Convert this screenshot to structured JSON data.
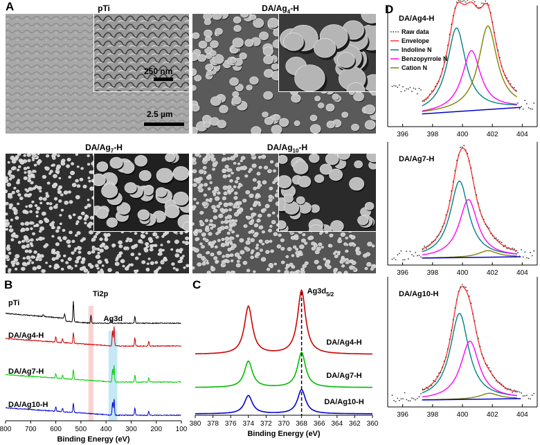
{
  "panel_a": {
    "label": "A",
    "images": [
      {
        "title": "pTi",
        "inset_scale": "250 nm",
        "main_scale": "2.5 µm"
      },
      {
        "title": "DA/Ag",
        "sub": "4",
        "suffix": "-H"
      },
      {
        "title": "DA/Ag",
        "sub": "7",
        "suffix": "-H"
      },
      {
        "title": "DA/Ag",
        "sub": "10",
        "suffix": "-H"
      }
    ]
  },
  "panel_b": {
    "label": "B",
    "chart_data": {
      "type": "line",
      "xlabel": "Binding Energy (eV)",
      "xlim": [
        800,
        100
      ],
      "x_ticks": [
        "800",
        "700",
        "600",
        "500",
        "400",
        "300",
        "200",
        "100"
      ],
      "annotations": [
        "Ti2p",
        "Ag3d"
      ],
      "series": [
        {
          "name": "pTi",
          "color": "#000000"
        },
        {
          "name": "DA/Ag4-H",
          "color": "#cc0000"
        },
        {
          "name": "DA/Ag7-H",
          "color": "#00cc00"
        },
        {
          "name": "DA/Ag10-H",
          "color": "#0000cc"
        }
      ]
    }
  },
  "panel_c": {
    "label": "C",
    "chart_data": {
      "type": "line",
      "xlabel": "Binding Energy (eV)",
      "xlim": [
        380,
        360
      ],
      "x_ticks": [
        "380",
        "378",
        "376",
        "374",
        "372",
        "370",
        "368",
        "366",
        "364",
        "362",
        "360"
      ],
      "annotation_main": "Ag3d",
      "annotation_sub": "5/2",
      "peaks": [
        374.0,
        368.0
      ],
      "series": [
        {
          "name": "DA/Ag4-H",
          "color": "#cc0000",
          "height": 1.0
        },
        {
          "name": "DA/Ag7-H",
          "color": "#00bb00",
          "height": 0.55
        },
        {
          "name": "DA/Ag10-H",
          "color": "#0000cc",
          "height": 0.38
        }
      ]
    }
  },
  "panel_d": {
    "label": "D",
    "legend": [
      "Raw data",
      "Envelope",
      "Indoline N",
      "Benzopyrrole N",
      "Cation N"
    ],
    "colors": {
      "raw": "#333333",
      "envelope": "#ff3333",
      "indoline": "#008080",
      "benzopyrrole": "#ff00ff",
      "cation": "#808000",
      "baseline": "#0000cc"
    },
    "x_ticks": [
      "396",
      "398",
      "400",
      "402",
      "404"
    ],
    "plots": [
      {
        "title": "DA/Ag4-H",
        "components": [
          {
            "center": 399.6,
            "height": 0.78
          },
          {
            "center": 400.6,
            "height": 0.56
          },
          {
            "center": 401.7,
            "height": 0.78
          }
        ]
      },
      {
        "title": "DA/Ag7-H",
        "components": [
          {
            "center": 399.8,
            "height": 0.7
          },
          {
            "center": 400.4,
            "height": 0.53
          },
          {
            "center": 401.7,
            "height": 0.06
          }
        ]
      },
      {
        "title": "DA/Ag10-H",
        "components": [
          {
            "center": 399.8,
            "height": 0.74
          },
          {
            "center": 400.5,
            "height": 0.5
          },
          {
            "center": 401.8,
            "height": 0.05
          }
        ]
      }
    ]
  }
}
